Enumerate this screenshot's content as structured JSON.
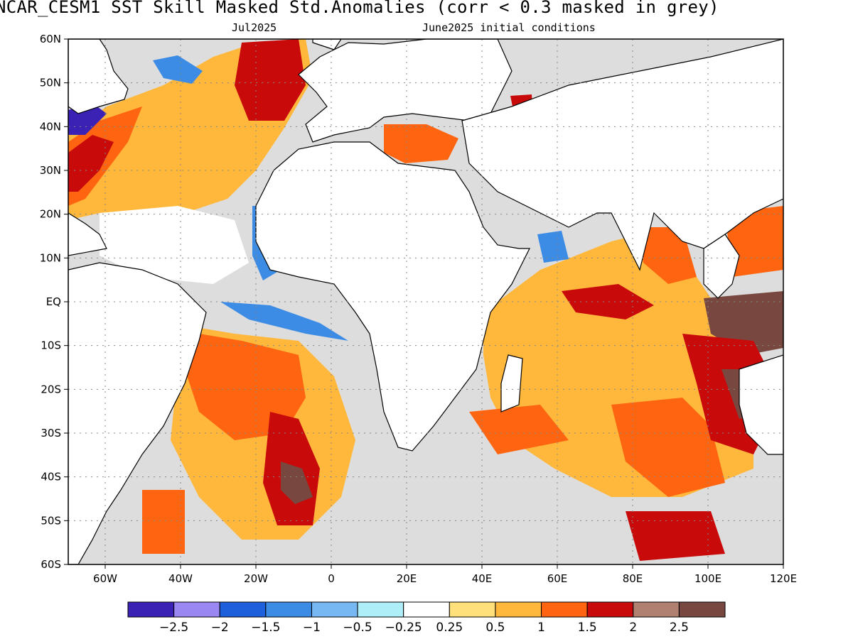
{
  "title": "NCAR_CESM1  SST Skill Masked Std.Anomalies (corr < 0.3 masked in grey)",
  "valid_month": "Jul2025",
  "init_conditions": "June2025 initial conditions",
  "latitude_labels": [
    "60N",
    "50N",
    "40N",
    "30N",
    "20N",
    "10N",
    "EQ",
    "10S",
    "20S",
    "30S",
    "40S",
    "50S",
    "60S"
  ],
  "longitude_labels": [
    "60W",
    "40W",
    "20W",
    "0",
    "20E",
    "40E",
    "60E",
    "80E",
    "100E",
    "120E"
  ],
  "colorbar": {
    "colors": [
      "#3b22b5",
      "#9a87f2",
      "#1e5fdc",
      "#3c8ce6",
      "#78b8f2",
      "#aeeef8",
      "#ffffff",
      "#ffe07a",
      "#ffb83c",
      "#ff6410",
      "#c80a0a",
      "#b08070",
      "#784840"
    ],
    "labels": [
      "−2.5",
      "−2",
      "−1.5",
      "−1",
      "−0.5",
      "−0.25",
      "0.25",
      "0.5",
      "1",
      "1.5",
      "2",
      "2.5"
    ]
  },
  "mask_color": "#dddddd",
  "land_color": "#ffffff"
}
